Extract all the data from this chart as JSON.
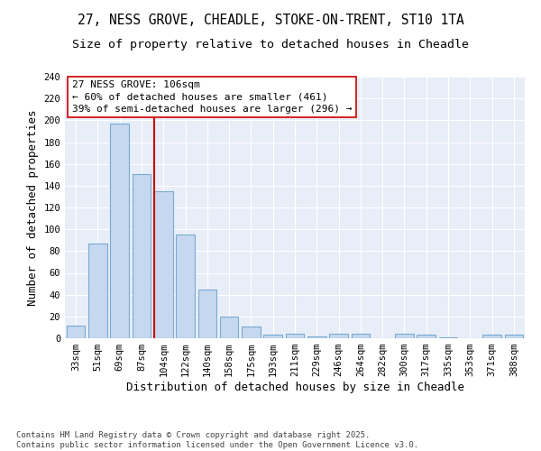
{
  "title_line1": "27, NESS GROVE, CHEADLE, STOKE-ON-TRENT, ST10 1TA",
  "title_line2": "Size of property relative to detached houses in Cheadle",
  "xlabel": "Distribution of detached houses by size in Cheadle",
  "ylabel": "Number of detached properties",
  "categories": [
    "33sqm",
    "51sqm",
    "69sqm",
    "87sqm",
    "104sqm",
    "122sqm",
    "140sqm",
    "158sqm",
    "175sqm",
    "193sqm",
    "211sqm",
    "229sqm",
    "246sqm",
    "264sqm",
    "282sqm",
    "300sqm",
    "317sqm",
    "335sqm",
    "353sqm",
    "371sqm",
    "388sqm"
  ],
  "values": [
    12,
    87,
    197,
    151,
    135,
    95,
    45,
    20,
    11,
    3,
    4,
    2,
    4,
    4,
    0,
    4,
    3,
    1,
    0,
    3,
    3
  ],
  "bar_color": "#c5d8f0",
  "bar_edge_color": "#7aaad0",
  "vline_color": "#cc0000",
  "vline_bar_index": 4,
  "annotation_text": "27 NESS GROVE: 106sqm\n← 60% of detached houses are smaller (461)\n39% of semi-detached houses are larger (296) →",
  "annotation_box_color": "#ffffff",
  "annotation_box_edge": "#cc0000",
  "ylim_max": 240,
  "yticks": [
    0,
    20,
    40,
    60,
    80,
    100,
    120,
    140,
    160,
    180,
    200,
    220,
    240
  ],
  "background_color": "#e8eef8",
  "footer_line1": "Contains HM Land Registry data © Crown copyright and database right 2025.",
  "footer_line2": "Contains public sector information licensed under the Open Government Licence v3.0.",
  "title_fontsize": 10.5,
  "subtitle_fontsize": 9.5,
  "axis_label_fontsize": 9,
  "tick_fontsize": 7.5,
  "annotation_fontsize": 8,
  "footer_fontsize": 6.5
}
